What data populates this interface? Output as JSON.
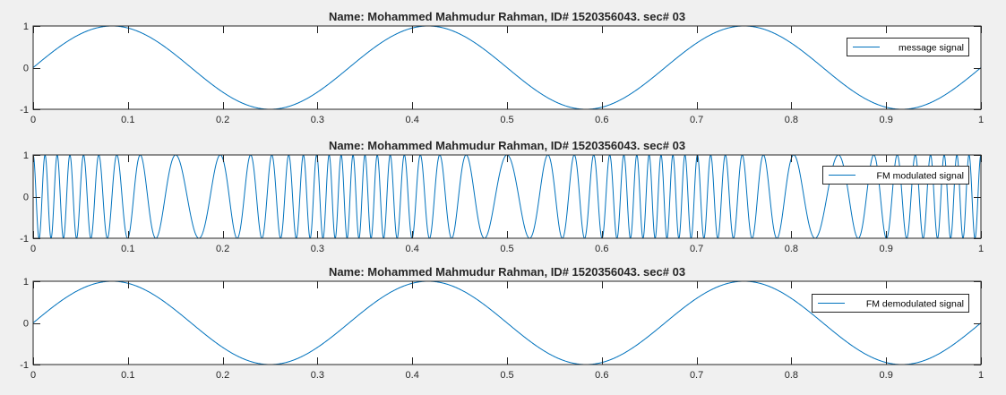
{
  "figure": {
    "background": "#f0f0f0",
    "axes_background": "#ffffff",
    "axes_color": "#262626",
    "line_color": "#0072bd"
  },
  "chart_data": [
    {
      "type": "line",
      "title": "Name: Mohammed Mahmudur Rahman, ID# 1520356043. sec# 03",
      "xlabel": "",
      "ylabel": "",
      "xlim": [
        0,
        1
      ],
      "ylim": [
        -1,
        1
      ],
      "xticks": [
        0,
        0.1,
        0.2,
        0.3,
        0.4,
        0.5,
        0.6,
        0.7,
        0.8,
        0.9,
        1
      ],
      "xtick_labels": [
        "0",
        "0.1",
        "0.2",
        "0.3",
        "0.4",
        "0.5",
        "0.6",
        "0.7",
        "0.8",
        "0.9",
        "1"
      ],
      "yticks": [
        -1,
        0,
        1
      ],
      "ytick_labels": [
        "-1",
        "0",
        "1"
      ],
      "grid": false,
      "legend_position": "top-right",
      "series": [
        {
          "name": "message signal",
          "function": "sin(2*pi*fm*t)",
          "fm": 3,
          "amplitude": 1,
          "t_range": [
            0,
            1
          ]
        }
      ]
    },
    {
      "type": "line",
      "title": "Name: Mohammed Mahmudur Rahman, ID# 1520356043. sec# 03",
      "xlabel": "",
      "ylabel": "",
      "xlim": [
        0,
        1
      ],
      "ylim": [
        -1,
        1
      ],
      "xticks": [
        0,
        0.1,
        0.2,
        0.3,
        0.4,
        0.5,
        0.6,
        0.7,
        0.8,
        0.9,
        1
      ],
      "xtick_labels": [
        "0",
        "0.1",
        "0.2",
        "0.3",
        "0.4",
        "0.5",
        "0.6",
        "0.7",
        "0.8",
        "0.9",
        "1"
      ],
      "yticks": [
        -1,
        0,
        1
      ],
      "ytick_labels": [
        "-1",
        "0",
        "1"
      ],
      "grid": false,
      "legend_position": "top-right",
      "series": [
        {
          "name": "FM modulated signal",
          "function": "cos(2*pi*fc*t + beta*sin(2*pi*fm*t))",
          "fc": 50,
          "fm": 3,
          "beta": 10,
          "amplitude": 1,
          "t_range": [
            0,
            1
          ]
        }
      ]
    },
    {
      "type": "line",
      "title": "Name: Mohammed Mahmudur Rahman, ID# 1520356043. sec# 03",
      "xlabel": "",
      "ylabel": "",
      "xlim": [
        0,
        1
      ],
      "ylim": [
        -1,
        1
      ],
      "xticks": [
        0,
        0.1,
        0.2,
        0.3,
        0.4,
        0.5,
        0.6,
        0.7,
        0.8,
        0.9,
        1
      ],
      "xtick_labels": [
        "0",
        "0.1",
        "0.2",
        "0.3",
        "0.4",
        "0.5",
        "0.6",
        "0.7",
        "0.8",
        "0.9",
        "1"
      ],
      "yticks": [
        -1,
        0,
        1
      ],
      "ytick_labels": [
        "-1",
        "0",
        "1"
      ],
      "grid": false,
      "legend_position": "top-right",
      "series": [
        {
          "name": "FM demodulated signal",
          "function": "sin(2*pi*fm*t)",
          "fm": 3,
          "amplitude": 1,
          "t_range": [
            0,
            1
          ]
        }
      ]
    }
  ]
}
